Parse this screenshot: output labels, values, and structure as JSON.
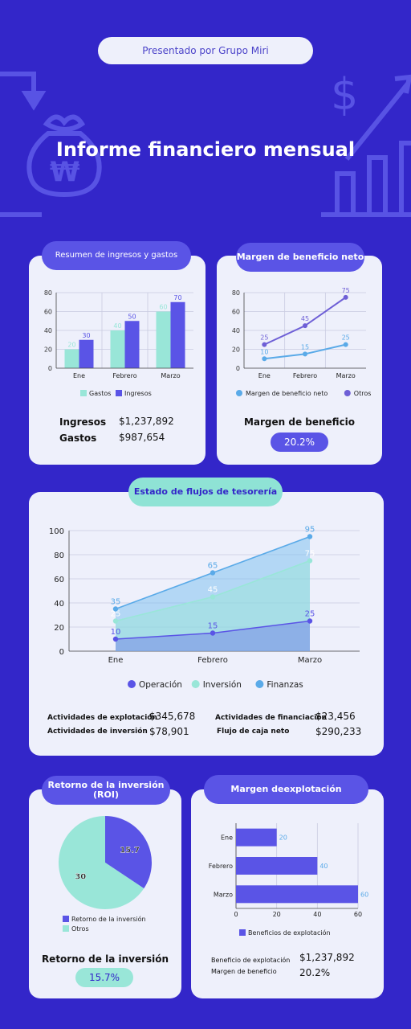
{
  "header": {
    "presented_by": "Presentado por Grupo Miri",
    "title": "Informe financiero mensual"
  },
  "colors": {
    "background": "#3326c9",
    "card": "#eef0fb",
    "accent": "#5a54e6",
    "teal": "#99e6d8",
    "blue": "#5aaae8",
    "indigo": "#5a54e6"
  },
  "icons": [
    "arrow-down-icon",
    "money-bag-won-icon",
    "dollar-icon",
    "growth-arrow-icon",
    "bar-chart-icon"
  ],
  "income_expenses": {
    "tab": "Resumen de ingresos y gastos",
    "stats": [
      {
        "label": "Ingresos",
        "value": "$1,237,892"
      },
      {
        "label": "Gastos",
        "value": "$987,654"
      }
    ]
  },
  "net_margin": {
    "tab": "Margen de beneficio neto",
    "summary_label": "Margen de beneficio",
    "summary_value": "20.2%"
  },
  "cash_flow": {
    "tab": "Estado de flujos de tesorería",
    "stats": [
      {
        "label": "Actividades de explotación",
        "value": "$345,678"
      },
      {
        "label": "Actividades de inversión",
        "value": "$78,901"
      },
      {
        "label": "Actividades de financiación",
        "value": "$23,456"
      },
      {
        "label": "Flujo de caja neto",
        "value": "$290,233"
      }
    ]
  },
  "roi": {
    "tab": "Retorno de la inversión (ROI)",
    "summary_label": "Retorno de la inversión",
    "summary_value": "15.7%"
  },
  "op_margin": {
    "tab": "Margen deexplotación",
    "stats": [
      {
        "label": "Beneficio de explotación",
        "value": "$1,237,892"
      },
      {
        "label": "Margen de beneficio",
        "value": "20.2%"
      }
    ]
  },
  "chart_data": [
    {
      "id": "income_expenses",
      "type": "bar",
      "categories": [
        "Ene",
        "Febrero",
        "Marzo"
      ],
      "series": [
        {
          "name": "Gastos",
          "values": [
            20,
            40,
            60
          ],
          "color": "#99e6d8"
        },
        {
          "name": "Ingresos",
          "values": [
            30,
            50,
            70
          ],
          "color": "#5a54e6"
        }
      ],
      "ylim": [
        0,
        80
      ],
      "yticks": [
        0,
        20,
        40,
        60,
        80
      ],
      "grid": true,
      "legend": "bottom"
    },
    {
      "id": "net_margin",
      "type": "line",
      "categories": [
        "Ene",
        "Febrero",
        "Marzo"
      ],
      "series": [
        {
          "name": "Margen de beneficio neto",
          "values": [
            10,
            15,
            25
          ],
          "color": "#5aaae8"
        },
        {
          "name": "Otros",
          "values": [
            25,
            45,
            75
          ],
          "color": "#6e5fd6"
        }
      ],
      "ylim": [
        0,
        80
      ],
      "yticks": [
        0,
        20,
        40,
        60,
        80
      ],
      "grid": true,
      "legend": "bottom"
    },
    {
      "id": "cash_flow",
      "type": "area",
      "categories": [
        "Ene",
        "Febrero",
        "Marzo"
      ],
      "series": [
        {
          "name": "Operación",
          "values": [
            10,
            15,
            25
          ],
          "color": "#5a54e6"
        },
        {
          "name": "Inversión",
          "values": [
            25,
            45,
            75
          ],
          "color": "#99e6d8"
        },
        {
          "name": "Finanzas",
          "values": [
            35,
            65,
            95
          ],
          "color": "#5aaae8"
        }
      ],
      "ylim": [
        0,
        100
      ],
      "yticks": [
        0,
        20,
        40,
        60,
        80,
        100
      ],
      "grid": true,
      "legend": "bottom"
    },
    {
      "id": "roi",
      "type": "pie",
      "slices": [
        {
          "name": "Retorno de la inversión",
          "value": 15.7,
          "color": "#5a54e6"
        },
        {
          "name": "Otros",
          "value": 30,
          "color": "#99e6d8"
        }
      ],
      "legend": "bottom"
    },
    {
      "id": "op_margin",
      "type": "bar",
      "orientation": "horizontal",
      "categories": [
        "Ene",
        "Febrero",
        "Marzo"
      ],
      "series": [
        {
          "name": "Beneficios de explotación",
          "values": [
            20,
            40,
            60
          ],
          "color": "#5a54e6"
        }
      ],
      "xlim": [
        0,
        60
      ],
      "xticks": [
        0,
        20,
        40,
        60
      ],
      "grid": true,
      "legend": "bottom"
    }
  ]
}
